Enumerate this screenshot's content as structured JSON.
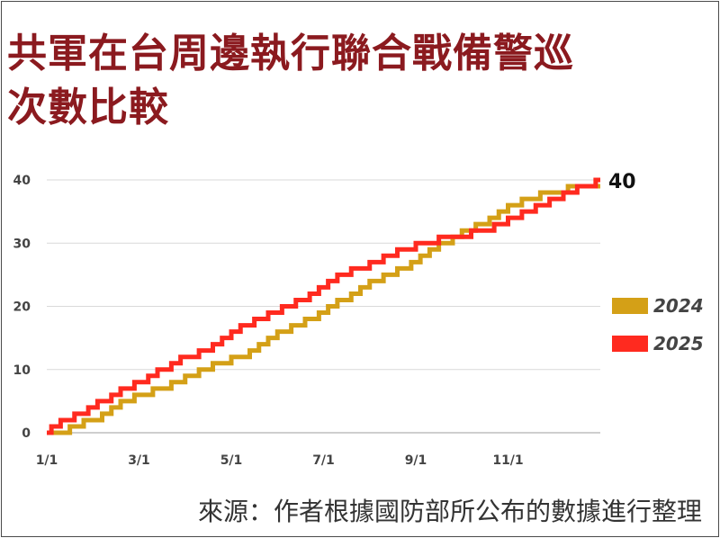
{
  "title_lines": [
    "共軍在台周邊執行聯合戰備警巡",
    "次數比較"
  ],
  "source": "來源：作者根據國防部所公布的數據進行整理",
  "chart_data": {
    "type": "line",
    "title": "共軍在台周邊執行聯合戰備警巡次數比較",
    "ylim": [
      0,
      40
    ],
    "y_ticks": [
      0,
      10,
      20,
      30,
      40
    ],
    "x_domain": [
      1,
      13
    ],
    "x_ticks": [
      {
        "label": "1/1",
        "month": 1
      },
      {
        "label": "3/1",
        "month": 3
      },
      {
        "label": "5/1",
        "month": 5
      },
      {
        "label": "7/1",
        "month": 7
      },
      {
        "label": "9/1",
        "month": 9
      },
      {
        "label": "11/1",
        "month": 11
      }
    ],
    "grid": true,
    "legend_position": "right",
    "end_label": "40",
    "step": true,
    "series": [
      {
        "name": "2024",
        "color": "#d4a017",
        "x": [
          1,
          1.5,
          1.8,
          2.2,
          2.4,
          2.6,
          2.9,
          3.3,
          3.7,
          4.0,
          4.3,
          4.6,
          5.0,
          5.4,
          5.6,
          5.8,
          6.0,
          6.3,
          6.6,
          6.9,
          7.1,
          7.3,
          7.6,
          7.8,
          8.0,
          8.3,
          8.6,
          8.9,
          9.1,
          9.3,
          9.5,
          9.8,
          10.0,
          10.3,
          10.6,
          10.8,
          11.0,
          11.3,
          11.7,
          12.3,
          12.9
        ],
        "values": [
          0,
          1,
          2,
          3,
          4,
          5,
          6,
          7,
          8,
          9,
          10,
          11,
          12,
          13,
          14,
          15,
          16,
          17,
          18,
          19,
          20,
          21,
          22,
          23,
          24,
          25,
          26,
          27,
          28,
          29,
          30,
          31,
          32,
          33,
          34,
          35,
          36,
          37,
          38,
          39,
          39
        ]
      },
      {
        "name": "2025",
        "color": "#ff2a1f",
        "x": [
          1,
          1.1,
          1.3,
          1.6,
          1.9,
          2.1,
          2.4,
          2.6,
          2.9,
          3.2,
          3.4,
          3.7,
          3.9,
          4.3,
          4.6,
          4.8,
          5.0,
          5.2,
          5.5,
          5.8,
          6.1,
          6.4,
          6.7,
          6.9,
          7.1,
          7.3,
          7.6,
          8.0,
          8.3,
          8.6,
          9.0,
          9.5,
          10.2,
          10.7,
          11.0,
          11.3,
          11.6,
          11.9,
          12.2,
          12.5,
          12.9
        ],
        "values": [
          0,
          1,
          2,
          3,
          4,
          5,
          6,
          7,
          8,
          9,
          10,
          11,
          12,
          13,
          14,
          15,
          16,
          17,
          18,
          19,
          20,
          21,
          22,
          23,
          24,
          25,
          26,
          27,
          28,
          29,
          30,
          31,
          32,
          33,
          34,
          35,
          36,
          37,
          38,
          39,
          40
        ]
      }
    ]
  }
}
